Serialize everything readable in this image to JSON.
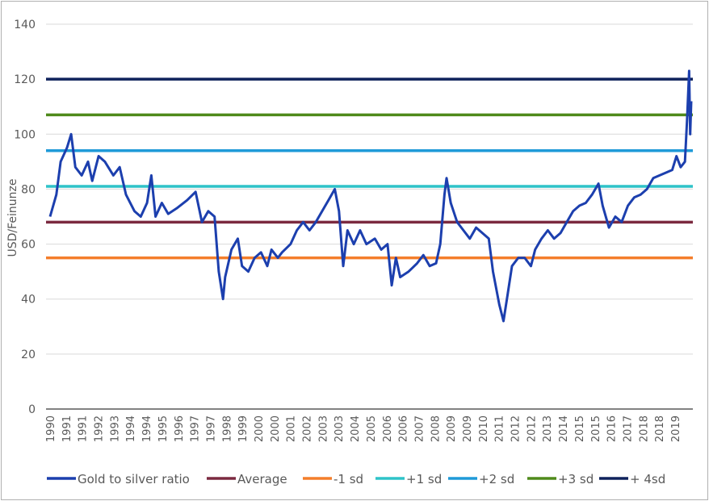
{
  "chart_data": {
    "type": "line",
    "title": "",
    "xlabel": "",
    "ylabel": "USD/Feinunze",
    "ylim": [
      0,
      140
    ],
    "yticks": [
      0,
      20,
      40,
      60,
      80,
      100,
      120,
      140
    ],
    "xlim": [
      1990,
      2020.4
    ],
    "grid": true,
    "legend_position": "bottom",
    "x_tick_labels": [
      "1990",
      "1991",
      "1991",
      "1992",
      "1993",
      "1994",
      "1994",
      "1995",
      "1996",
      "1997",
      "1997",
      "1998",
      "1999",
      "2000",
      "2000",
      "2001",
      "2002",
      "2003",
      "2003",
      "2004",
      "2005",
      "2006",
      "2006",
      "2007",
      "2008",
      "2009",
      "2009",
      "2010",
      "2011",
      "2012",
      "2012",
      "2013",
      "2014",
      "2015",
      "2015",
      "2016",
      "2017",
      "2018",
      "2018",
      "2019"
    ],
    "series": [
      {
        "name": "Gold to silver ratio",
        "color": "#1c3fae",
        "type": "line",
        "x": [
          1990.0,
          1990.3,
          1990.5,
          1990.8,
          1991.0,
          1991.2,
          1991.5,
          1991.8,
          1992.0,
          1992.3,
          1992.6,
          1993.0,
          1993.3,
          1993.6,
          1994.0,
          1994.3,
          1994.6,
          1994.8,
          1995.0,
          1995.3,
          1995.6,
          1996.0,
          1996.5,
          1996.9,
          1997.2,
          1997.5,
          1997.8,
          1998.0,
          1998.2,
          1998.3,
          1998.6,
          1998.9,
          1999.1,
          1999.4,
          1999.7,
          2000.0,
          2000.3,
          2000.5,
          2000.8,
          2001.0,
          2001.4,
          2001.7,
          2002.0,
          2002.3,
          2002.6,
          2002.9,
          2003.2,
          2003.5,
          2003.7,
          2003.9,
          2004.1,
          2004.4,
          2004.7,
          2005.0,
          2005.4,
          2005.7,
          2006.0,
          2006.2,
          2006.4,
          2006.6,
          2007.0,
          2007.4,
          2007.7,
          2008.0,
          2008.3,
          2008.5,
          2008.7,
          2008.8,
          2009.0,
          2009.3,
          2009.6,
          2009.9,
          2010.2,
          2010.5,
          2010.8,
          2011.0,
          2011.3,
          2011.5,
          2011.7,
          2011.9,
          2012.2,
          2012.5,
          2012.8,
          2013.0,
          2013.3,
          2013.6,
          2013.9,
          2014.2,
          2014.5,
          2014.8,
          2015.1,
          2015.4,
          2015.7,
          2016.0,
          2016.2,
          2016.5,
          2016.8,
          2017.1,
          2017.4,
          2017.7,
          2018.0,
          2018.3,
          2018.6,
          2018.9,
          2019.2,
          2019.5,
          2019.7,
          2019.9,
          2020.1,
          2020.2,
          2020.3,
          2020.35,
          2020.4
        ],
        "values": [
          70,
          78,
          90,
          95,
          100,
          88,
          85,
          90,
          83,
          92,
          90,
          85,
          88,
          78,
          72,
          70,
          75,
          85,
          70,
          75,
          71,
          73,
          76,
          79,
          68,
          72,
          70,
          50,
          40,
          48,
          58,
          62,
          52,
          50,
          55,
          57,
          52,
          58,
          55,
          57,
          60,
          65,
          68,
          65,
          68,
          72,
          76,
          80,
          72,
          52,
          65,
          60,
          65,
          60,
          62,
          58,
          60,
          45,
          55,
          48,
          50,
          53,
          56,
          52,
          53,
          60,
          78,
          84,
          75,
          68,
          65,
          62,
          66,
          64,
          62,
          50,
          38,
          32,
          42,
          52,
          55,
          55,
          52,
          58,
          62,
          65,
          62,
          64,
          68,
          72,
          74,
          75,
          78,
          82,
          74,
          66,
          70,
          68,
          74,
          77,
          78,
          80,
          84,
          85,
          86,
          87,
          92,
          88,
          90,
          105,
          123,
          100,
          112
        ]
      },
      {
        "name": "Average",
        "color": "#7b2a40",
        "type": "hline",
        "value": 68
      },
      {
        "name": "-1 sd",
        "color": "#f47e2b",
        "type": "hline",
        "value": 55
      },
      {
        "name": "+1 sd",
        "color": "#2ec3c8",
        "type": "hline",
        "value": 81
      },
      {
        "name": "+2 sd",
        "color": "#1f9ad8",
        "type": "hline",
        "value": 94
      },
      {
        "name": "+3 sd",
        "color": "#4f8a1b",
        "type": "hline",
        "value": 107
      },
      {
        "name": "+ 4sd",
        "color": "#0f225c",
        "type": "hline",
        "value": 120
      }
    ]
  }
}
